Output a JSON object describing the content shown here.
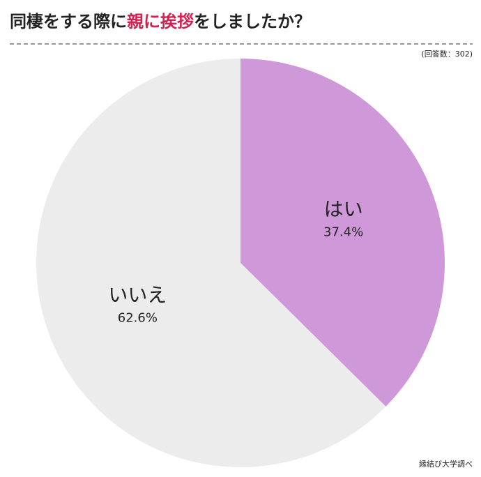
{
  "chart_data": {
    "type": "pie",
    "title_parts": [
      {
        "text": "同棲をする際に",
        "color": "#222222"
      },
      {
        "text": "親に挨拶",
        "color": "#d4204f"
      },
      {
        "text": "をしましたか？",
        "color": "#222222"
      }
    ],
    "subtitle": "(回答数：302)",
    "source": "縁結び大学調べ",
    "categories": [
      "はい",
      "いいえ"
    ],
    "values": [
      37.4,
      62.6
    ],
    "value_labels": [
      "37.4%",
      "62.6%"
    ],
    "colors": [
      "#cf98d8",
      "#ececec"
    ]
  }
}
